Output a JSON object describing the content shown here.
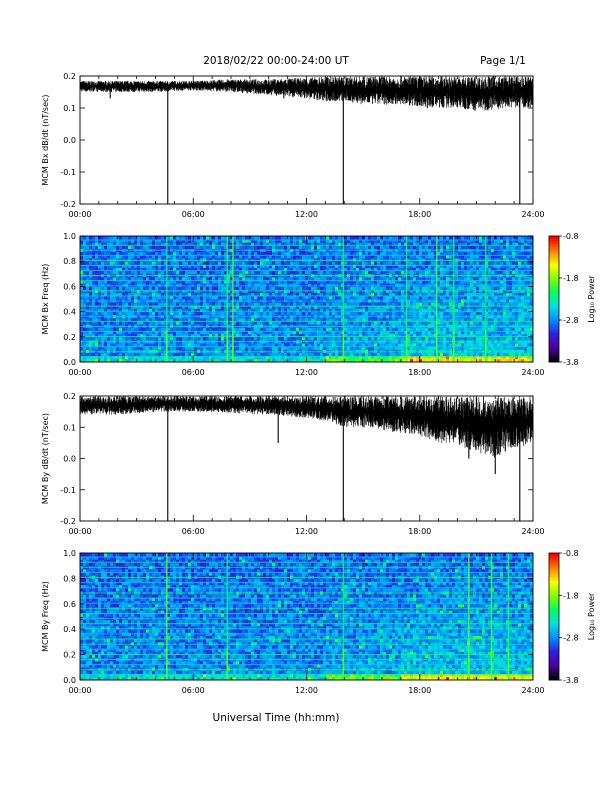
{
  "header": {
    "title": "2018/02/22  00:00-24:00 UT",
    "page": "Page 1/1"
  },
  "footer": {
    "xlabel": "Universal Time (hh:mm)"
  },
  "colors": {
    "trace": "#000000",
    "spectrogram_background": "#1a0a5c",
    "colormap": [
      "#000000",
      "#5000a0",
      "#3020e0",
      "#0090ff",
      "#00e0e0",
      "#00ff60",
      "#80ff00",
      "#ffff00",
      "#ff8000",
      "#ff0000"
    ]
  },
  "chart_data": [
    {
      "type": "line",
      "name": "bx-dbdt-panel",
      "ylabel": "MCM Bx dB/dt (nT/sec)",
      "x_ticks": [
        "00:00",
        "06:00",
        "12:00",
        "18:00",
        "24:00"
      ],
      "xlim": [
        0,
        24
      ],
      "ylim": [
        -0.2,
        0.2
      ],
      "y_ticks": [
        "0.2",
        "0.1",
        "0.0",
        "-0.1",
        "-0.2"
      ],
      "y_tick_values": [
        0.2,
        0.1,
        0.0,
        -0.1,
        -0.2
      ],
      "envelope": {
        "x": [
          0,
          2,
          4,
          6,
          8,
          10,
          12,
          13,
          14,
          15,
          16,
          17,
          18,
          19,
          20,
          21,
          22,
          23,
          24
        ],
        "upper": [
          0.185,
          0.185,
          0.185,
          0.185,
          0.19,
          0.19,
          0.195,
          0.2,
          0.2,
          0.2,
          0.2,
          0.2,
          0.2,
          0.2,
          0.2,
          0.2,
          0.2,
          0.2,
          0.2
        ],
        "lower": [
          0.15,
          0.15,
          0.15,
          0.155,
          0.15,
          0.14,
          0.13,
          0.12,
          0.12,
          0.11,
          0.11,
          0.11,
          0.105,
          0.1,
          0.1,
          0.09,
          0.095,
          0.1,
          0.1
        ]
      },
      "dips": [
        {
          "t": 1.6,
          "y": 0.13
        },
        {
          "t": 4.65,
          "y": -0.2
        },
        {
          "t": 10.8,
          "y": 0.13
        },
        {
          "t": 13.95,
          "y": -0.2
        },
        {
          "t": 18.4,
          "y": 0.1
        },
        {
          "t": 23.3,
          "y": -0.2
        }
      ]
    },
    {
      "type": "heatmap",
      "name": "bx-spectrogram-panel",
      "ylabel": "MCM Bx Freq (Hz)",
      "x_ticks": [
        "00:00",
        "06:00",
        "12:00",
        "18:00",
        "24:00"
      ],
      "xlim": [
        0,
        24
      ],
      "ylim": [
        0.0,
        1.0
      ],
      "y_ticks": [
        "1.0",
        "0.8",
        "0.6",
        "0.4",
        "0.2",
        "0.0"
      ],
      "y_tick_values": [
        1.0,
        0.8,
        0.6,
        0.4,
        0.2,
        0.0
      ],
      "colorbar": {
        "label": "Log₁₀ Power",
        "ticks": [
          "-0.8",
          "-1.8",
          "-2.8",
          "-3.8"
        ],
        "tick_values": [
          -0.8,
          -1.8,
          -2.8,
          -3.8
        ],
        "range": [
          -3.8,
          -0.8
        ]
      },
      "bright_times": [
        4.6,
        7.8,
        8.1,
        13.95,
        17.3,
        18.9,
        19.8,
        21.5
      ]
    },
    {
      "type": "line",
      "name": "by-dbdt-panel",
      "ylabel": "MCM By dB/dt (nT/sec)",
      "x_ticks": [
        "00:00",
        "06:00",
        "12:00",
        "18:00",
        "24:00"
      ],
      "xlim": [
        0,
        24
      ],
      "ylim": [
        -0.2,
        0.2
      ],
      "y_ticks": [
        "0.2",
        "0.1",
        "0.0",
        "-0.1",
        "-0.2"
      ],
      "y_tick_values": [
        0.2,
        0.1,
        0.0,
        -0.1,
        -0.2
      ],
      "envelope": {
        "x": [
          0,
          2,
          4,
          6,
          8,
          10,
          12,
          13,
          14,
          15,
          16,
          17,
          18,
          19,
          20,
          21,
          22,
          23,
          24
        ],
        "upper": [
          0.2,
          0.2,
          0.2,
          0.2,
          0.2,
          0.2,
          0.2,
          0.2,
          0.2,
          0.2,
          0.2,
          0.2,
          0.2,
          0.2,
          0.2,
          0.2,
          0.2,
          0.2,
          0.2
        ],
        "lower": [
          0.14,
          0.14,
          0.15,
          0.15,
          0.145,
          0.14,
          0.13,
          0.12,
          0.1,
          0.1,
          0.09,
          0.08,
          0.07,
          0.05,
          0.04,
          0.02,
          0.0,
          0.03,
          0.05
        ]
      },
      "dips": [
        {
          "t": 4.65,
          "y": -0.2
        },
        {
          "t": 10.5,
          "y": 0.05
        },
        {
          "t": 13.95,
          "y": -0.2
        },
        {
          "t": 20.6,
          "y": 0.0
        },
        {
          "t": 22.0,
          "y": -0.05
        },
        {
          "t": 23.3,
          "y": -0.2
        }
      ]
    },
    {
      "type": "heatmap",
      "name": "by-spectrogram-panel",
      "ylabel": "MCM By Freq (Hz)",
      "x_ticks": [
        "00:00",
        "06:00",
        "12:00",
        "18:00",
        "24:00"
      ],
      "xlim": [
        0,
        24
      ],
      "ylim": [
        0.0,
        1.0
      ],
      "y_ticks": [
        "1.0",
        "0.8",
        "0.6",
        "0.4",
        "0.2",
        "0.0"
      ],
      "y_tick_values": [
        1.0,
        0.8,
        0.6,
        0.4,
        0.2,
        0.0
      ],
      "colorbar": {
        "label": "Log₁₀ Power",
        "ticks": [
          "-0.8",
          "-1.8",
          "-2.8",
          "-3.8"
        ],
        "tick_values": [
          -0.8,
          -1.8,
          -2.8,
          -3.8
        ],
        "range": [
          -3.8,
          -0.8
        ]
      },
      "bright_times": [
        4.6,
        7.8,
        13.95,
        20.6,
        21.8,
        22.7
      ]
    }
  ]
}
